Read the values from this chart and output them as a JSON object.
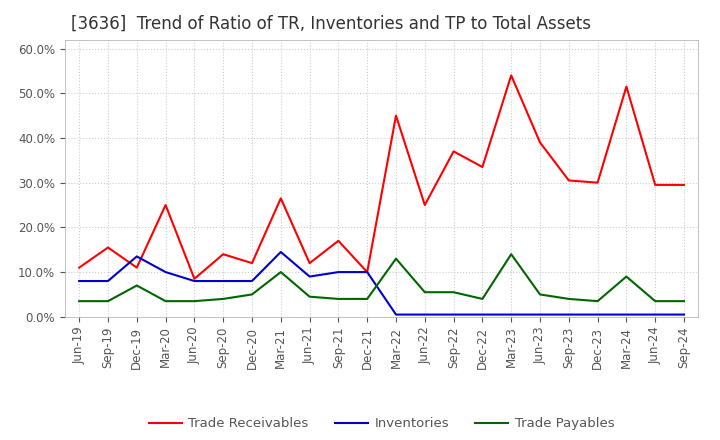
{
  "title": "[3636]  Trend of Ratio of TR, Inventories and TP to Total Assets",
  "labels": [
    "Jun-19",
    "Sep-19",
    "Dec-19",
    "Mar-20",
    "Jun-20",
    "Sep-20",
    "Dec-20",
    "Mar-21",
    "Jun-21",
    "Sep-21",
    "Dec-21",
    "Mar-22",
    "Jun-22",
    "Sep-22",
    "Dec-22",
    "Mar-23",
    "Jun-23",
    "Sep-23",
    "Dec-23",
    "Mar-24",
    "Jun-24",
    "Sep-24"
  ],
  "trade_receivables": [
    0.11,
    0.155,
    0.11,
    0.25,
    0.085,
    0.14,
    0.12,
    0.265,
    0.12,
    0.17,
    0.1,
    0.45,
    0.25,
    0.37,
    0.335,
    0.54,
    0.39,
    0.305,
    0.3,
    0.515,
    0.295,
    0.295
  ],
  "inventories": [
    0.08,
    0.08,
    0.135,
    0.1,
    0.08,
    0.08,
    0.08,
    0.145,
    0.09,
    0.1,
    0.1,
    0.005,
    0.005,
    0.005,
    0.005,
    0.005,
    0.005,
    0.005,
    0.005,
    0.005,
    0.005,
    0.005
  ],
  "trade_payables": [
    0.035,
    0.035,
    0.07,
    0.035,
    0.035,
    0.04,
    0.05,
    0.1,
    0.045,
    0.04,
    0.04,
    0.13,
    0.055,
    0.055,
    0.04,
    0.14,
    0.05,
    0.04,
    0.035,
    0.09,
    0.035,
    0.035
  ],
  "tr_color": "#ff0000",
  "inv_color": "#0000cc",
  "tp_color": "#006600",
  "bg_color": "#ffffff",
  "plot_bg_color": "#ffffff",
  "grid_color": "#cccccc",
  "title_color": "#333333",
  "text_color": "#555555",
  "ylim": [
    0.0,
    0.62
  ],
  "yticks": [
    0.0,
    0.1,
    0.2,
    0.3,
    0.4,
    0.5,
    0.6
  ],
  "legend_labels": [
    "Trade Receivables",
    "Inventories",
    "Trade Payables"
  ],
  "title_fontsize": 12,
  "tick_fontsize": 8.5,
  "legend_fontsize": 9.5
}
